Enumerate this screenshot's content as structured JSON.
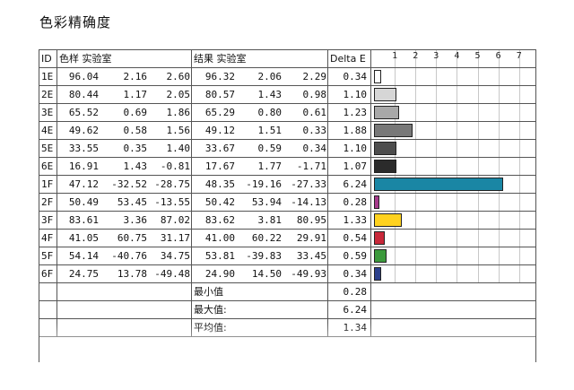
{
  "page": {
    "title": "色彩精确度"
  },
  "table": {
    "headers": {
      "id": "ID",
      "sample": "色样 实验室",
      "result": "结果 实验室",
      "delta": "Delta E"
    },
    "axis_ticks": [
      "1",
      "2",
      "3",
      "4",
      "5",
      "6",
      "7"
    ],
    "rows": [
      {
        "id": "1E",
        "s1": "96.04",
        "s2": "2.16",
        "s3": "2.60",
        "r1": "96.32",
        "r2": "2.06",
        "r3": "2.29",
        "de": "0.34",
        "value": 0.34,
        "color": "#ffffff"
      },
      {
        "id": "2E",
        "s1": "80.44",
        "s2": "1.17",
        "s3": "2.05",
        "r1": "80.57",
        "r2": "1.43",
        "r3": "0.98",
        "de": "1.10",
        "value": 1.1,
        "color": "#d6d6d6"
      },
      {
        "id": "3E",
        "s1": "65.52",
        "s2": "0.69",
        "s3": "1.86",
        "r1": "65.29",
        "r2": "0.80",
        "r3": "0.61",
        "de": "1.23",
        "value": 1.23,
        "color": "#a8a8a8"
      },
      {
        "id": "4E",
        "s1": "49.62",
        "s2": "0.58",
        "s3": "1.56",
        "r1": "49.12",
        "r2": "1.51",
        "r3": "0.33",
        "de": "1.88",
        "value": 1.88,
        "color": "#787878"
      },
      {
        "id": "5E",
        "s1": "33.55",
        "s2": "0.35",
        "s3": "1.40",
        "r1": "33.67",
        "r2": "0.59",
        "r3": "0.34",
        "de": "1.10",
        "value": 1.1,
        "color": "#4d4d4d"
      },
      {
        "id": "6E",
        "s1": "16.91",
        "s2": "1.43",
        "s3": "-0.81",
        "r1": "17.67",
        "r2": "1.77",
        "r3": "-1.71",
        "de": "1.07",
        "value": 1.07,
        "color": "#2b2b2b"
      },
      {
        "id": "1F",
        "s1": "47.12",
        "s2": "-32.52",
        "s3": "-28.75",
        "r1": "48.35",
        "r2": "-19.16",
        "r3": "-27.33",
        "de": "6.24",
        "value": 6.24,
        "color": "#1a86a4"
      },
      {
        "id": "2F",
        "s1": "50.49",
        "s2": "53.45",
        "s3": "-13.55",
        "r1": "50.42",
        "r2": "53.94",
        "r3": "-14.13",
        "de": "0.28",
        "value": 0.28,
        "color": "#a63a8c"
      },
      {
        "id": "3F",
        "s1": "83.61",
        "s2": "3.36",
        "s3": "87.02",
        "r1": "83.62",
        "r2": "3.81",
        "r3": "80.95",
        "de": "1.33",
        "value": 1.33,
        "color": "#ffd21f"
      },
      {
        "id": "4F",
        "s1": "41.05",
        "s2": "60.75",
        "s3": "31.17",
        "r1": "41.00",
        "r2": "60.22",
        "r3": "29.91",
        "de": "0.54",
        "value": 0.54,
        "color": "#c8283a"
      },
      {
        "id": "5F",
        "s1": "54.14",
        "s2": "-40.76",
        "s3": "34.75",
        "r1": "53.81",
        "r2": "-39.83",
        "r3": "33.45",
        "de": "0.59",
        "value": 0.59,
        "color": "#3c9a3c"
      },
      {
        "id": "6F",
        "s1": "24.75",
        "s2": "13.78",
        "s3": "-49.48",
        "r1": "24.90",
        "r2": "14.50",
        "r3": "-49.93",
        "de": "0.34",
        "value": 0.34,
        "color": "#2a3f8c"
      }
    ],
    "summary": [
      {
        "label": "最小值",
        "value": "0.28"
      },
      {
        "label": "最大值:",
        "value": "6.24"
      },
      {
        "label": "平均值:",
        "value": "1.34"
      }
    ]
  },
  "chart_data": {
    "type": "bar",
    "categories": [
      "1E",
      "2E",
      "3E",
      "4E",
      "5E",
      "6E",
      "1F",
      "2F",
      "3F",
      "4F",
      "5F",
      "6F"
    ],
    "values": [
      0.34,
      1.1,
      1.23,
      1.88,
      1.1,
      1.07,
      6.24,
      0.28,
      1.33,
      0.54,
      0.59,
      0.34
    ],
    "title": "",
    "xlabel": "",
    "ylabel": "Delta E",
    "xlim": [
      0,
      7
    ],
    "grid": true
  }
}
